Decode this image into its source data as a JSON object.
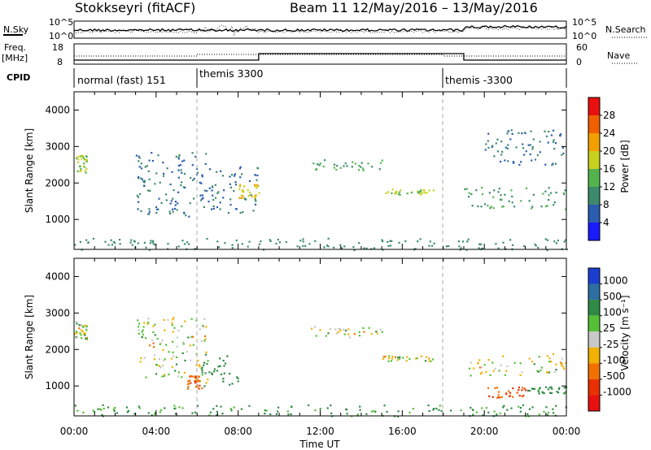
{
  "header": {
    "station": "Stokkseyri (fitACF)",
    "beam_info": "Beam 11  12/May/2016 – 13/May/2016"
  },
  "noise_panel": {
    "left_label": "N.Sky",
    "left_top_tick": "10^5",
    "left_bottom_tick": "10^0",
    "right_label": "N.Search",
    "right_top_tick": "10^5",
    "right_bottom_tick": "10^0"
  },
  "freq_panel": {
    "left_label_1": "Freq.",
    "left_label_2": "[MHz]",
    "left_top_tick": "18",
    "left_bottom_tick": "8",
    "right_label": "Nave",
    "right_top_tick": "60",
    "right_bottom_tick": "0"
  },
  "cpid_panel": {
    "label": "CPID",
    "segments": [
      {
        "name": "normal (fast) 151",
        "start_h": 0
      },
      {
        "name": "themis 3300",
        "start_h": 6
      },
      {
        "name": "themis -3300",
        "start_h": 18
      }
    ]
  },
  "power_panel": {
    "ylabel": "Slant Range [km]",
    "colorbar_label": "Power [dB]",
    "colorbar_ticks": [
      "4",
      "8",
      "12",
      "16",
      "20",
      "24",
      "28"
    ],
    "colorbar_colors": [
      "#1a1aff",
      "#2a5db0",
      "#3d8a6d",
      "#53b44d",
      "#c8d21e",
      "#f2a000",
      "#f06000",
      "#e81010"
    ]
  },
  "velocity_panel": {
    "ylabel": "Slant Range [km]",
    "colorbar_label": "Velocity [m s⁻¹]",
    "colorbar_ticks": [
      "1000",
      "500",
      "100",
      "25",
      "-25",
      "-100",
      "-500",
      "-1000"
    ],
    "colorbar_colors": [
      "#1a3fd0",
      "#2c6fa0",
      "#2f8a45",
      "#55c035",
      "#c8c8c8",
      "#f2b000",
      "#f27000",
      "#e83000",
      "#e81010"
    ]
  },
  "xaxis": {
    "label": "Time UT",
    "ticks": [
      "00:00",
      "04:00",
      "08:00",
      "12:00",
      "16:00",
      "20:00",
      "00:00"
    ]
  },
  "chart_data": [
    {
      "type": "heatmap",
      "title": "Power",
      "xlabel": "Time UT",
      "ylabel": "Slant Range [km]",
      "xlim": [
        0,
        24
      ],
      "ylim": [
        180,
        4500
      ],
      "yticks": [
        1000,
        2000,
        3000,
        4000
      ],
      "xticks_h": [
        0,
        4,
        8,
        12,
        16,
        20,
        24
      ],
      "clim": [
        0,
        32
      ],
      "scatter_regions": [
        {
          "t": [
            0.0,
            0.6
          ],
          "r": [
            2300,
            2800
          ],
          "value": 16
        },
        {
          "t": [
            3.0,
            6.5
          ],
          "r": [
            1100,
            2900
          ],
          "value": 8
        },
        {
          "t": [
            6.5,
            9.0
          ],
          "r": [
            1200,
            2500
          ],
          "value": 8
        },
        {
          "t": [
            8.0,
            9.0
          ],
          "r": [
            1600,
            2000
          ],
          "value": 20
        },
        {
          "t": [
            11.5,
            15.0
          ],
          "r": [
            2350,
            2650
          ],
          "value": 12
        },
        {
          "t": [
            15.0,
            17.5
          ],
          "r": [
            1700,
            1850
          ],
          "value": 16
        },
        {
          "t": [
            19.0,
            24.0
          ],
          "r": [
            1300,
            1900
          ],
          "value": 12
        },
        {
          "t": [
            20.0,
            24.0
          ],
          "r": [
            2500,
            3500
          ],
          "value": 8
        },
        {
          "t": [
            0.0,
            24.0
          ],
          "r": [
            180,
            500
          ],
          "value": 10
        }
      ]
    },
    {
      "type": "heatmap",
      "title": "Velocity",
      "xlabel": "Time UT",
      "ylabel": "Slant Range [km]",
      "xlim": [
        0,
        24
      ],
      "ylim": [
        180,
        4500
      ],
      "yticks": [
        1000,
        2000,
        3000,
        4000
      ],
      "xticks_h": [
        0,
        4,
        8,
        12,
        16,
        20,
        24
      ],
      "clim": [
        -1000,
        1000
      ],
      "scatter_regions": [
        {
          "t": [
            0.0,
            0.6
          ],
          "r": [
            2300,
            2800
          ],
          "value": 0
        },
        {
          "t": [
            3.0,
            6.5
          ],
          "r": [
            1100,
            2900
          ],
          "value": 0
        },
        {
          "t": [
            5.5,
            6.2
          ],
          "r": [
            900,
            1300
          ],
          "value": -500
        },
        {
          "t": [
            6.2,
            8.0
          ],
          "r": [
            1000,
            1900
          ],
          "value": 300
        },
        {
          "t": [
            11.5,
            15.0
          ],
          "r": [
            2350,
            2650
          ],
          "value": 0
        },
        {
          "t": [
            15.0,
            17.5
          ],
          "r": [
            1700,
            1850
          ],
          "value": 0
        },
        {
          "t": [
            19.0,
            24.0
          ],
          "r": [
            1300,
            1900
          ],
          "value": 0
        },
        {
          "t": [
            20.0,
            22.0
          ],
          "r": [
            700,
            1000
          ],
          "value": -500
        },
        {
          "t": [
            22.0,
            24.0
          ],
          "r": [
            800,
            1000
          ],
          "value": 200
        },
        {
          "t": [
            0.0,
            24.0
          ],
          "r": [
            180,
            500
          ],
          "value": 150
        }
      ]
    }
  ]
}
